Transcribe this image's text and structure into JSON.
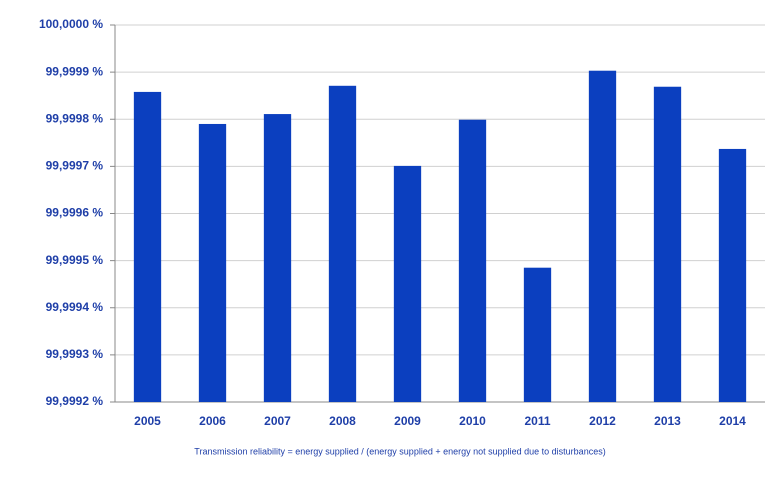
{
  "chart_data": {
    "type": "bar",
    "categories": [
      "2005",
      "2006",
      "2007",
      "2008",
      "2009",
      "2010",
      "2011",
      "2012",
      "2013",
      "2014"
    ],
    "values": [
      99.999858,
      99.99979,
      99.999811,
      99.999871,
      99.999701,
      99.999799,
      99.999485,
      99.999903,
      99.999869,
      99.999737
    ],
    "color": "#0b3fbf",
    "ylim": [
      99.9992,
      100.0
    ],
    "yticks": [
      {
        "value": 99.9992,
        "label": "99,9992 %"
      },
      {
        "value": 99.9993,
        "label": "99,9993 %"
      },
      {
        "value": 99.9994,
        "label": "99,9994 %"
      },
      {
        "value": 99.9995,
        "label": "99,9995 %"
      },
      {
        "value": 99.9996,
        "label": "99,9996 %"
      },
      {
        "value": 99.9997,
        "label": "99,9997 %"
      },
      {
        "value": 99.9998,
        "label": "99,9998 %"
      },
      {
        "value": 99.9999,
        "label": "99,9999 %"
      },
      {
        "value": 100.0,
        "label": "100,0000 %"
      }
    ],
    "grid": true,
    "note": "Transmission reliability = energy supplied / (energy supplied + energy not supplied due to disturbances)"
  }
}
